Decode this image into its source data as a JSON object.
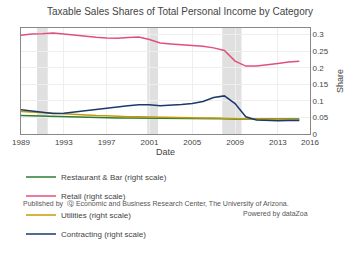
{
  "chart_data": {
    "type": "line",
    "title": "Taxable Sales Shares of Total Personal Income by Category",
    "xlabel": "Date",
    "ylabel": "Share",
    "x": [
      1989,
      1990,
      1991,
      1992,
      1993,
      1994,
      1995,
      1996,
      1997,
      1998,
      1999,
      2000,
      2001,
      2002,
      2003,
      2004,
      2005,
      2006,
      2007,
      2008,
      2009,
      2010,
      2011,
      2012,
      2013,
      2014,
      2015
    ],
    "series": [
      {
        "name": "Restaurant & Bar (right scale)",
        "color": "#2e7d32",
        "values": [
          0.056,
          0.055,
          0.054,
          0.052,
          0.051,
          0.05,
          0.05,
          0.049,
          0.049,
          0.048,
          0.048,
          0.048,
          0.047,
          0.047,
          0.046,
          0.046,
          0.046,
          0.046,
          0.046,
          0.046,
          0.045,
          0.045,
          0.045,
          0.045,
          0.045,
          0.045,
          0.045
        ]
      },
      {
        "name": "Retail (right scale)",
        "color": "#e0507a",
        "values": [
          0.298,
          0.302,
          0.303,
          0.305,
          0.302,
          0.298,
          0.295,
          0.292,
          0.29,
          0.289,
          0.291,
          0.293,
          0.285,
          0.275,
          0.272,
          0.27,
          0.268,
          0.265,
          0.26,
          0.252,
          0.22,
          0.205,
          0.205,
          0.208,
          0.213,
          0.217,
          0.22
        ]
      },
      {
        "name": "Utilities (right scale)",
        "color": "#c8980a",
        "values": [
          0.068,
          0.066,
          0.064,
          0.062,
          0.06,
          0.058,
          0.057,
          0.056,
          0.055,
          0.053,
          0.052,
          0.052,
          0.051,
          0.05,
          0.05,
          0.049,
          0.049,
          0.048,
          0.048,
          0.048,
          0.047,
          0.046,
          0.045,
          0.044,
          0.044,
          0.044,
          0.043
        ]
      },
      {
        "name": "Contracting (right scale)",
        "color": "#1a3a6b",
        "values": [
          0.073,
          0.07,
          0.065,
          0.062,
          0.063,
          0.067,
          0.071,
          0.075,
          0.079,
          0.082,
          0.085,
          0.088,
          0.088,
          0.085,
          0.086,
          0.089,
          0.092,
          0.098,
          0.11,
          0.115,
          0.092,
          0.052,
          0.042,
          0.04,
          0.04,
          0.041,
          0.041
        ]
      }
    ],
    "recession_bands": [
      [
        1990.5,
        1991.5
      ],
      [
        2000.8,
        2001.8
      ],
      [
        2007.8,
        2009.6
      ]
    ],
    "xlim": [
      1989,
      2016
    ],
    "xticks": [
      1989,
      1993,
      1997,
      2001,
      2005,
      2009,
      2013,
      2016
    ],
    "ylim": [
      0,
      0.32
    ],
    "yticks": [
      0,
      0.05,
      0.1,
      0.15,
      0.2,
      0.25,
      0.3
    ],
    "grid": true,
    "legend": "bottom",
    "annotations": [
      "Published by  Ⓠ Economic and Business Research Center, The University of Arizona.",
      "Powered by dataZoa"
    ]
  }
}
